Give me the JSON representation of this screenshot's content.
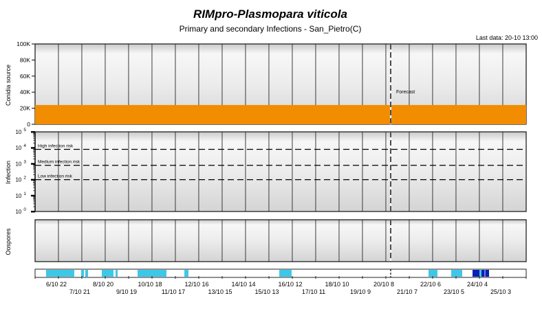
{
  "chart_data": {
    "type": "area",
    "title": "RIMpro-Plasmopara viticola",
    "subtitle": "Primary and secondary Infections - San_Pietro(C)",
    "last_data": "Last data: 20-10 13:00",
    "forecast_label": "Forecast",
    "x_tick_labels_upper": [
      "6/10 22",
      "8/10 20",
      "10/10 18",
      "12/10 16",
      "14/10 14",
      "16/10 12",
      "18/10 10",
      "20/10 8",
      "22/10 6",
      "24/10 4"
    ],
    "x_tick_labels_lower": [
      "7/10 21",
      "9/10 19",
      "11/10 17",
      "13/10 15",
      "15/10 13",
      "17/10 11",
      "19/10 9",
      "21/10 7",
      "23/10 5",
      "25/10 3"
    ],
    "panels": [
      {
        "name": "conidia",
        "ylabel": "Conidia source",
        "yticks": [
          "100K",
          "80K",
          "60K",
          "40K",
          "20K",
          "0"
        ],
        "ylim": [
          0,
          100000
        ],
        "series": [
          {
            "color": "#f28c00",
            "values": [
              24000
            ]
          }
        ]
      },
      {
        "name": "infection",
        "ylabel": "Infection",
        "yticks": [
          {
            "base": "10",
            "exp": "5"
          },
          {
            "base": "10",
            "exp": "4"
          },
          {
            "base": "10",
            "exp": "3"
          },
          {
            "base": "10",
            "exp": "2"
          },
          {
            "base": "10",
            "exp": "1"
          },
          {
            "base": "10",
            "exp": "0"
          }
        ],
        "scale": "log",
        "thresholds": [
          {
            "label": "High infection risk",
            "value_exp": 3.9
          },
          {
            "label": "Medium infection risk",
            "value_exp": 2.9
          },
          {
            "label": "Low infection risk",
            "value_exp": 2.0
          }
        ]
      },
      {
        "name": "oospores",
        "ylabel": "Oospores"
      }
    ],
    "colors": {
      "conidia": "#f28c00",
      "wetness_light": "#3ec8e8",
      "wetness_dark": "#0a1fb4",
      "panel_bg": "#e6e6e6",
      "column_border": "#222222"
    }
  }
}
